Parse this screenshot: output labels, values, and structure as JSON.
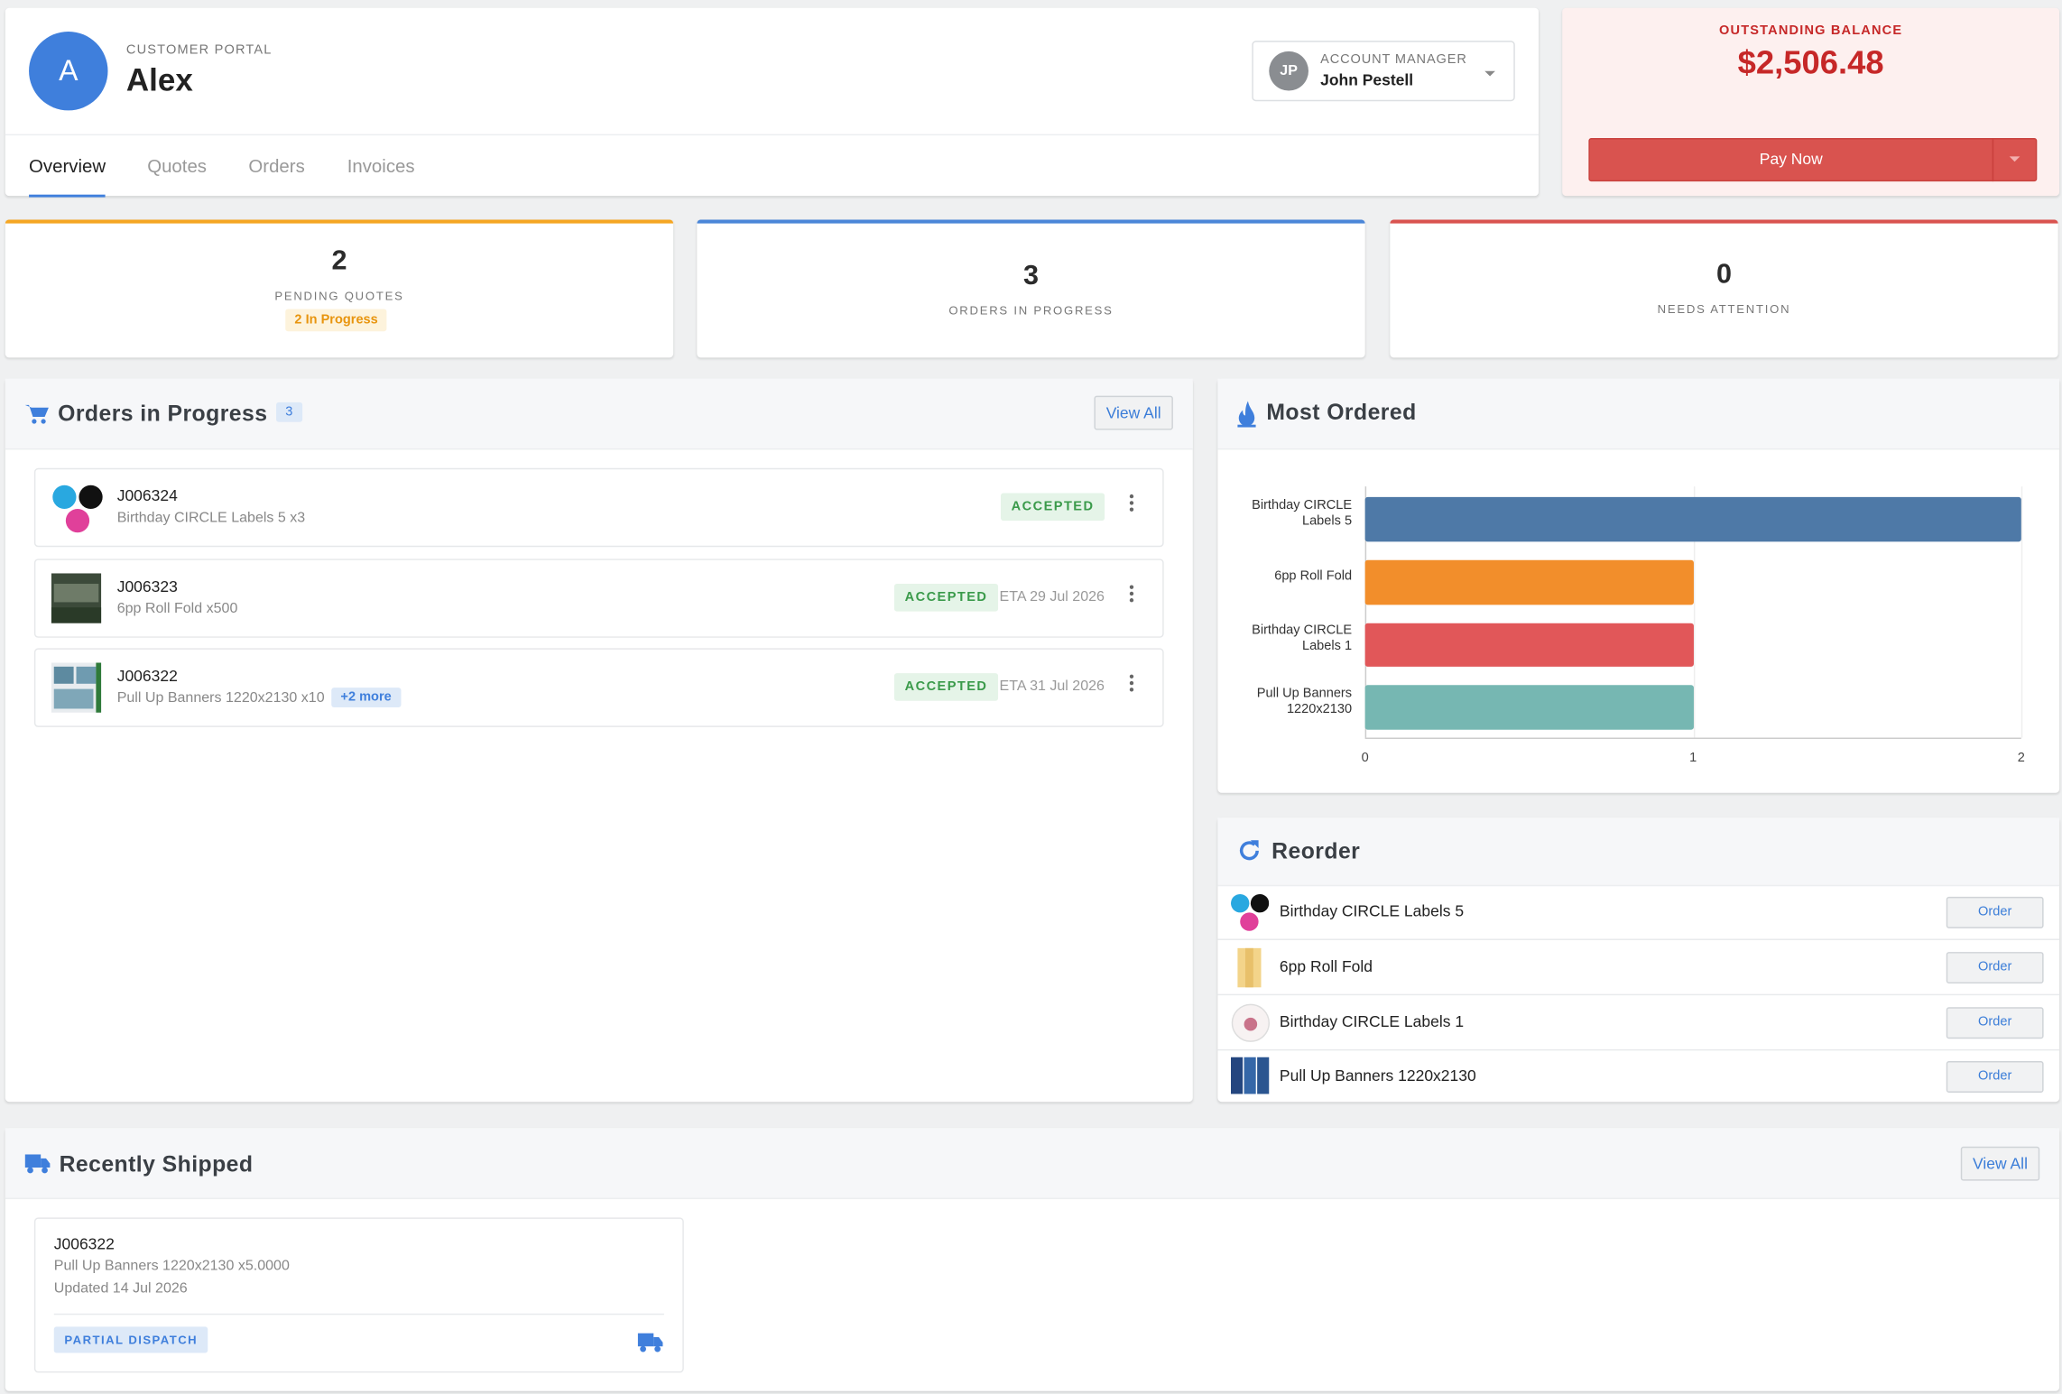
{
  "header": {
    "avatar": "A",
    "portal_label": "CUSTOMER PORTAL",
    "customer_name": "Alex",
    "account_manager": {
      "initials": "JP",
      "label": "ACCOUNT MANAGER",
      "name": "John Pestell"
    }
  },
  "tabs": [
    "Overview",
    "Quotes",
    "Orders",
    "Invoices"
  ],
  "balance": {
    "label": "OUTSTANDING BALANCE",
    "amount": "$2,506.48",
    "button": "Pay Now"
  },
  "stats": [
    {
      "value": 2,
      "label": "PENDING QUOTES",
      "badge": "2 In Progress"
    },
    {
      "value": 3,
      "label": "ORDERS IN PROGRESS"
    },
    {
      "value": 0,
      "label": "NEEDS ATTENTION"
    }
  ],
  "orders_in_progress": {
    "title": "Orders in Progress",
    "count": 3,
    "view_all": "View All",
    "items": [
      {
        "job": "J006324",
        "description": "Birthday CIRCLE Labels 5 x3",
        "status": "ACCEPTED"
      },
      {
        "job": "J006323",
        "description": "6pp Roll Fold x500",
        "status": "ACCEPTED",
        "eta": "ETA 29 Jul 2026"
      },
      {
        "job": "J006322",
        "description": "Pull Up Banners 1220x2130 x10",
        "more": "+2 more",
        "status": "ACCEPTED",
        "eta": "ETA 31 Jul 2026"
      }
    ]
  },
  "most_ordered": {
    "title": "Most Ordered",
    "chart": {
      "type": "bar",
      "orientation": "horizontal",
      "categories": [
        "Birthday CIRCLE Labels 5",
        "6pp Roll Fold",
        "Birthday CIRCLE Labels 1",
        "Pull Up Banners 1220x2130"
      ],
      "values": [
        2,
        1,
        1,
        1
      ],
      "colors": [
        "#4e79a7",
        "#f28e2b",
        "#e15759",
        "#76b7b2"
      ],
      "xlim": [
        0,
        2
      ],
      "xticks": [
        0,
        1,
        2
      ]
    }
  },
  "reorder": {
    "title": "Reorder",
    "items": [
      {
        "name": "Birthday CIRCLE Labels 5",
        "button": "Order"
      },
      {
        "name": "6pp Roll Fold",
        "button": "Order"
      },
      {
        "name": "Birthday CIRCLE Labels 1",
        "button": "Order"
      },
      {
        "name": "Pull Up Banners 1220x2130",
        "button": "Order"
      }
    ]
  },
  "recently_shipped": {
    "title": "Recently Shipped",
    "view_all": "View All",
    "items": [
      {
        "job": "J006322",
        "description": "Pull Up Banners 1220x2130 x5.0000",
        "updated": "Updated 14 Jul 2026",
        "status": "PARTIAL DISPATCH"
      }
    ]
  }
}
